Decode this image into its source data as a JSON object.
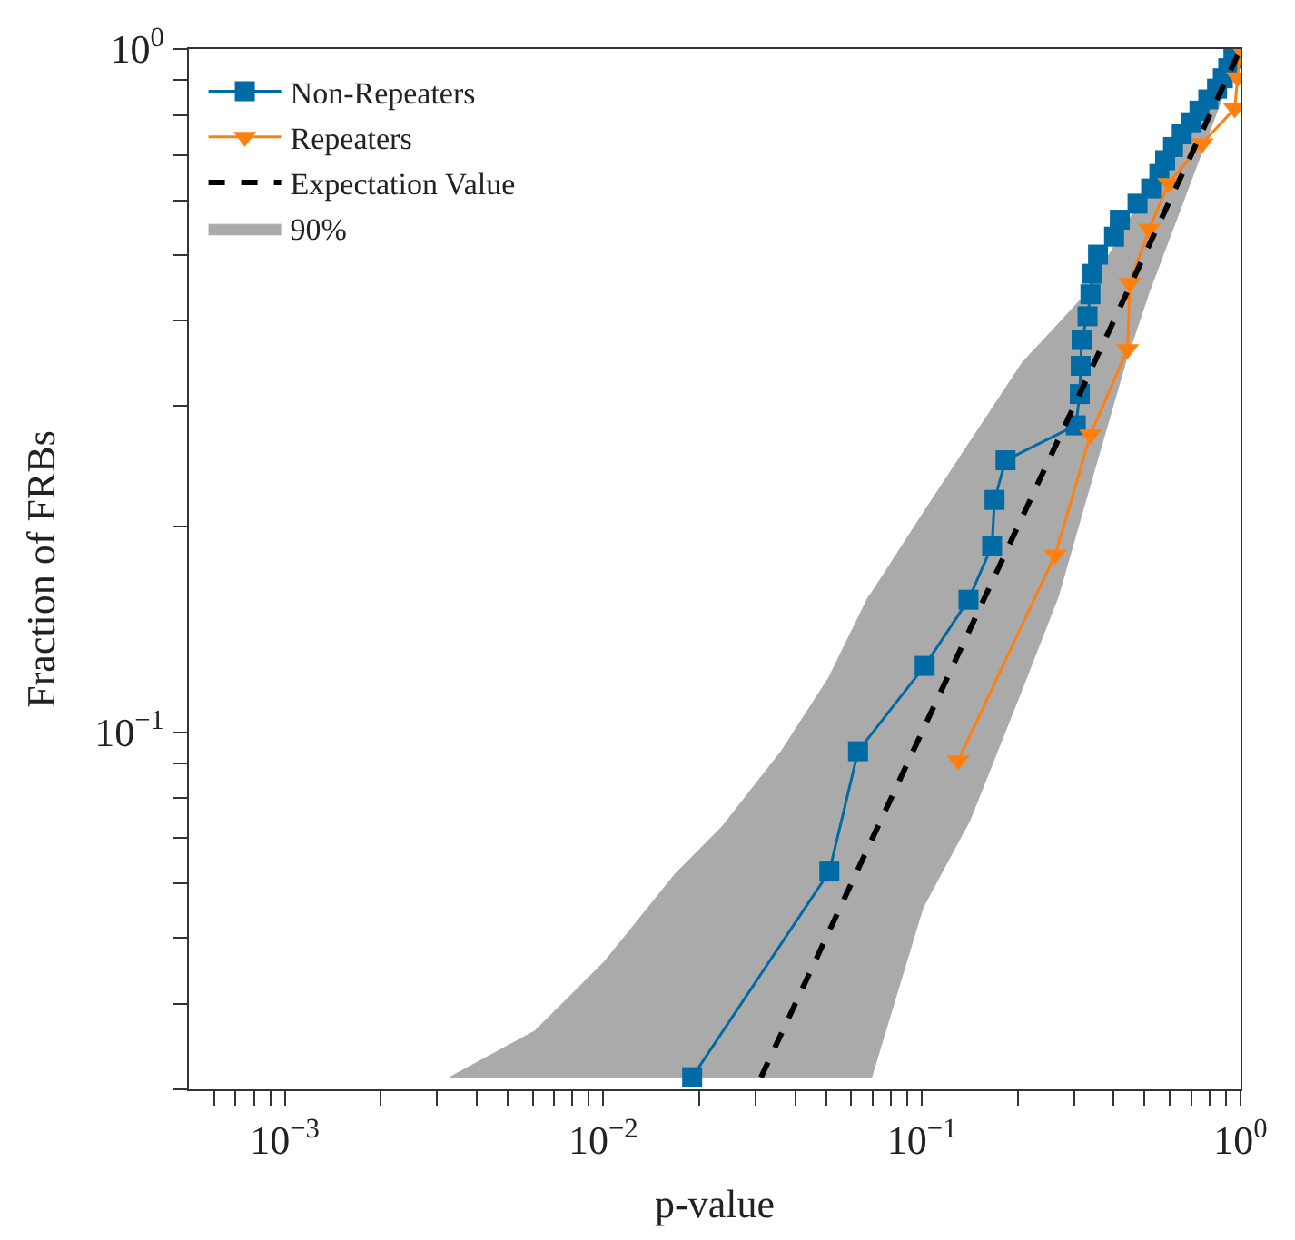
{
  "chart_data": {
    "type": "line",
    "xlabel": "p-value",
    "ylabel": "Fraction of FRBs",
    "log": "xy",
    "legend": "top left",
    "line_style": "solid",
    "xlim": [
      0.0005,
      1
    ],
    "ylim": [
      0.03,
      1
    ],
    "xticks": [
      {
        "value": 0.0006,
        "label": null
      },
      {
        "value": 0.0007,
        "label": null
      },
      {
        "value": 0.0008,
        "label": null
      },
      {
        "value": 0.0009,
        "label": null
      },
      {
        "value": 0.001,
        "label": "10$^{−3}$"
      },
      {
        "value": 0.002,
        "label": null
      },
      {
        "value": 0.003,
        "label": null
      },
      {
        "value": 0.004,
        "label": null
      },
      {
        "value": 0.005,
        "label": null
      },
      {
        "value": 0.006,
        "label": null
      },
      {
        "value": 0.007,
        "label": null
      },
      {
        "value": 0.008,
        "label": null
      },
      {
        "value": 0.009,
        "label": null
      },
      {
        "value": 0.01,
        "label": "10$^{−2}$"
      },
      {
        "value": 0.02,
        "label": null
      },
      {
        "value": 0.03,
        "label": null
      },
      {
        "value": 0.04,
        "label": null
      },
      {
        "value": 0.05,
        "label": null
      },
      {
        "value": 0.06,
        "label": null
      },
      {
        "value": 0.07,
        "label": null
      },
      {
        "value": 0.08,
        "label": null
      },
      {
        "value": 0.09,
        "label": null
      },
      {
        "value": 0.1,
        "label": "10$^{−1}$"
      },
      {
        "value": 0.2,
        "label": null
      },
      {
        "value": 0.3,
        "label": null
      },
      {
        "value": 0.4,
        "label": null
      },
      {
        "value": 0.5,
        "label": null
      },
      {
        "value": 0.6,
        "label": null
      },
      {
        "value": 0.7,
        "label": null
      },
      {
        "value": 0.8,
        "label": null
      },
      {
        "value": 0.9,
        "label": null
      },
      {
        "value": 1,
        "label": "10$^{0}$"
      }
    ],
    "yticks": [
      {
        "value": 0.03,
        "label": null
      },
      {
        "value": 0.04,
        "label": null
      },
      {
        "value": 0.05,
        "label": null
      },
      {
        "value": 0.06,
        "label": null
      },
      {
        "value": 0.07,
        "label": null
      },
      {
        "value": 0.08,
        "label": null
      },
      {
        "value": 0.09,
        "label": null
      },
      {
        "value": 0.1,
        "label": "10$^{−1}$"
      },
      {
        "value": 0.2,
        "label": null
      },
      {
        "value": 0.3,
        "label": null
      },
      {
        "value": 0.4,
        "label": null
      },
      {
        "value": 0.5,
        "label": null
      },
      {
        "value": 0.6,
        "label": null
      },
      {
        "value": 0.7,
        "label": null
      },
      {
        "value": 0.8,
        "label": null
      },
      {
        "value": 0.9,
        "label": null
      },
      {
        "value": 1,
        "label": "10$^{0}$"
      }
    ],
    "series": [
      {
        "name": "Non-Repeaters",
        "color": "#006ba4",
        "marker": "square",
        "x": [
          0.019,
          0.0512,
          0.063,
          0.102,
          0.14,
          0.166,
          0.169,
          0.183,
          0.304,
          0.313,
          0.315,
          0.317,
          0.331,
          0.338,
          0.343,
          0.357,
          0.401,
          0.418,
          0.475,
          0.524,
          0.556,
          0.58,
          0.614,
          0.654,
          0.697,
          0.743,
          0.792,
          0.844,
          0.88,
          0.915,
          0.95,
          1.0
        ],
        "values": [
          0.03125,
          0.0625,
          0.09375,
          0.125,
          0.15625,
          0.1875,
          0.21875,
          0.25,
          0.28125,
          0.3125,
          0.34375,
          0.375,
          0.40625,
          0.4375,
          0.46875,
          0.5,
          0.53125,
          0.5625,
          0.59375,
          0.625,
          0.65625,
          0.6875,
          0.71875,
          0.75,
          0.78125,
          0.8125,
          0.84375,
          0.875,
          0.90625,
          0.9375,
          0.96875,
          1.0
        ]
      },
      {
        "name": "Repeaters",
        "color": "#ff800e",
        "marker": "triangle",
        "x": [
          0.13,
          0.262,
          0.338,
          0.442,
          0.449,
          0.517,
          0.595,
          0.758,
          0.959,
          0.979,
          1.0
        ],
        "values": [
          0.0909,
          0.1818,
          0.2727,
          0.3636,
          0.4545,
          0.5455,
          0.6364,
          0.7273,
          0.8182,
          0.9091,
          1.0
        ]
      },
      {
        "name": "Expectation Value",
        "color": "#000000",
        "marker": "none",
        "line_style": "dashed",
        "x": [
          0.03125,
          1.0
        ],
        "values": [
          0.03125,
          1.0
        ]
      },
      {
        "name": "90%",
        "type": "area",
        "color": "#aaaaaa",
        "x": [
          0.00329,
          0.00608,
          0.0101,
          0.0169,
          0.0237,
          0.0363,
          0.0509,
          0.068,
          0.0695,
          0.1007,
          0.1415,
          0.207,
          0.268,
          0.331,
          0.436,
          0.517,
          0.654,
          0.808,
          1.0
        ],
        "values": [
          null,
          null,
          null,
          null,
          null,
          null,
          null,
          null,
          null,
          null,
          null,
          null,
          null,
          null,
          null,
          null,
          null,
          null,
          null
        ],
        "lower": [
          0.03125,
          0.03125,
          0.03125,
          0.03125,
          0.03125,
          0.03125,
          0.03125,
          0.03125,
          0.03125,
          0.0553,
          0.0743,
          0.116,
          0.158,
          0.223,
          0.348,
          0.441,
          0.59,
          0.767,
          1.0
        ],
        "upper": [
          0.03125,
          0.0365,
          0.0462,
          0.0622,
          0.0729,
          0.094,
          0.12,
          0.158,
          0.16,
          0.209,
          0.266,
          0.348,
          0.396,
          0.441,
          0.551,
          0.634,
          0.767,
          0.875,
          1.0
        ]
      }
    ]
  }
}
